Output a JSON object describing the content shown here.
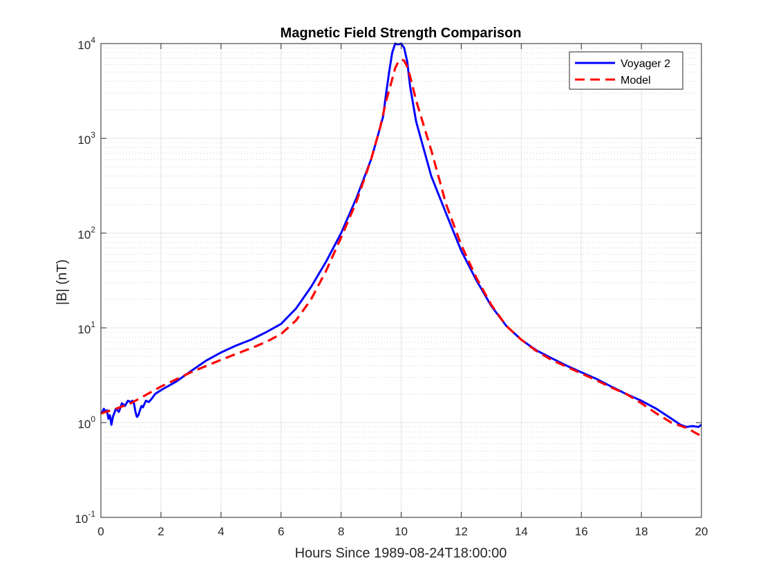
{
  "chart_data": {
    "type": "line",
    "title": "Magnetic Field Strength Comparison",
    "xlabel": "Hours Since 1989-08-24T18:00:00",
    "ylabel": "|B| (nT)",
    "xlim": [
      0,
      20
    ],
    "ylim": [
      0.1,
      10000
    ],
    "yscale": "log",
    "grid": true,
    "minor_grid_y": true,
    "legend_position": "top-right",
    "x_ticks": [
      0,
      2,
      4,
      6,
      8,
      10,
      12,
      14,
      16,
      18,
      20
    ],
    "x_tick_labels": [
      "0",
      "2",
      "4",
      "6",
      "8",
      "10",
      "12",
      "14",
      "16",
      "18",
      "20"
    ],
    "y_ticks": [
      {
        "value": 0.1,
        "base": "10",
        "exp": "-1"
      },
      {
        "value": 1,
        "base": "10",
        "exp": "0"
      },
      {
        "value": 10,
        "base": "10",
        "exp": "1"
      },
      {
        "value": 100,
        "base": "10",
        "exp": "2"
      },
      {
        "value": 1000,
        "base": "10",
        "exp": "3"
      },
      {
        "value": 10000,
        "base": "10",
        "exp": "4"
      }
    ],
    "series": [
      {
        "name": "Voyager 2",
        "color": "#0000ff",
        "style": "solid",
        "x": [
          0,
          0.05,
          0.1,
          0.15,
          0.2,
          0.25,
          0.3,
          0.35,
          0.4,
          0.5,
          0.6,
          0.7,
          0.8,
          0.9,
          1.0,
          1.05,
          1.1,
          1.15,
          1.2,
          1.25,
          1.3,
          1.35,
          1.4,
          1.5,
          1.6,
          1.7,
          1.8,
          2.0,
          2.5,
          3.0,
          3.5,
          4.0,
          4.5,
          5.0,
          5.5,
          6.0,
          6.5,
          7.0,
          7.5,
          8.0,
          8.5,
          9.0,
          9.2,
          9.4,
          9.5,
          9.6,
          9.7,
          9.8,
          9.9,
          10.0,
          10.1,
          10.2,
          10.3,
          10.5,
          11.0,
          11.5,
          12.0,
          12.5,
          13.0,
          13.5,
          14.0,
          14.5,
          15.0,
          15.5,
          16.0,
          16.5,
          17.0,
          17.5,
          18.0,
          18.5,
          19.0,
          19.3,
          19.5,
          19.7,
          19.9,
          20.0
        ],
        "y": [
          1.25,
          1.3,
          1.4,
          1.3,
          1.35,
          1.1,
          1.2,
          0.95,
          1.15,
          1.4,
          1.3,
          1.6,
          1.5,
          1.7,
          1.65,
          1.7,
          1.6,
          1.3,
          1.15,
          1.2,
          1.35,
          1.5,
          1.45,
          1.7,
          1.65,
          1.8,
          2.0,
          2.2,
          2.7,
          3.5,
          4.5,
          5.5,
          6.5,
          7.5,
          9.0,
          11.0,
          16.0,
          27.0,
          50.0,
          100.0,
          230.0,
          600.0,
          1000.0,
          1700.0,
          3000.0,
          5000.0,
          8000.0,
          10000.0,
          9800.0,
          10000.0,
          9000.0,
          6500.0,
          3500.0,
          1500.0,
          400.0,
          160.0,
          65.0,
          32.0,
          17.0,
          10.5,
          7.5,
          5.8,
          4.8,
          4.0,
          3.4,
          2.9,
          2.4,
          2.0,
          1.7,
          1.4,
          1.1,
          0.95,
          0.9,
          0.92,
          0.9,
          0.95
        ]
      },
      {
        "name": "Model",
        "color": "#ff0000",
        "style": "dashed",
        "x": [
          0,
          0.5,
          1.0,
          2.0,
          3.0,
          4.0,
          5.0,
          5.5,
          6.0,
          6.5,
          7.0,
          7.5,
          8.0,
          8.5,
          9.0,
          9.3,
          9.5,
          9.7,
          9.8,
          9.9,
          10.0,
          10.1,
          10.2,
          10.3,
          10.5,
          11.0,
          11.5,
          12.0,
          12.5,
          13.0,
          13.5,
          14.0,
          14.5,
          15.0,
          15.5,
          16.0,
          16.5,
          17.0,
          17.5,
          18.0,
          18.5,
          19.0,
          19.5,
          20.0
        ],
        "y": [
          1.25,
          1.4,
          1.6,
          2.4,
          3.4,
          4.6,
          6.1,
          7.1,
          8.6,
          12.0,
          20.0,
          40.0,
          90.0,
          210.0,
          600.0,
          1300.0,
          2500.0,
          4200.0,
          5500.0,
          6400.0,
          6800.0,
          6600.0,
          5700.0,
          4500.0,
          2500.0,
          750.0,
          200.0,
          75.0,
          34.0,
          17.5,
          10.5,
          7.5,
          5.7,
          4.6,
          3.9,
          3.3,
          2.8,
          2.35,
          2.0,
          1.6,
          1.25,
          1.0,
          0.88,
          0.72
        ]
      }
    ]
  }
}
